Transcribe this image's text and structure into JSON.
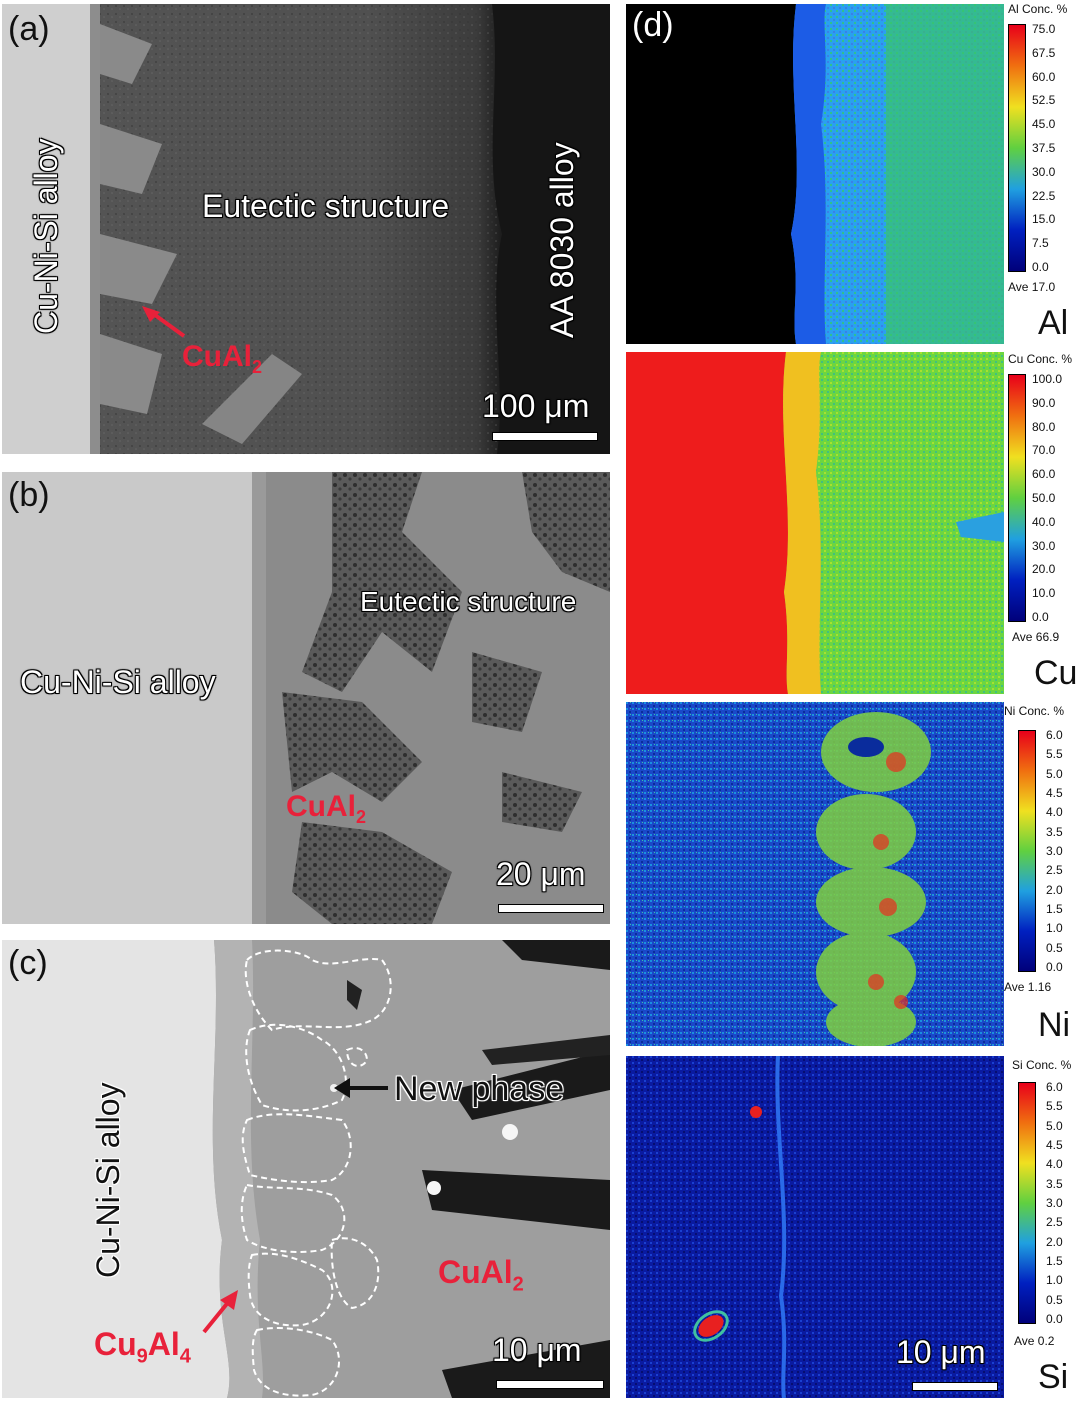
{
  "panels": {
    "a": {
      "label": "(a)",
      "left_text": "Cu-Ni-Si alloy",
      "center_text": "Eutectic structure",
      "right_text": "AA 8030 alloy",
      "phase_text": "CuAl",
      "phase_sub": "2",
      "scale": "100 μm"
    },
    "b": {
      "label": "(b)",
      "left_text": "Cu-Ni-Si alloy",
      "center_text": "Eutectic structure",
      "phase_text": "CuAl",
      "phase_sub": "2",
      "scale": "20 μm"
    },
    "c": {
      "label": "(c)",
      "left_text": "Cu-Ni-Si alloy",
      "new_phase": "New phase",
      "phase_text": "CuAl",
      "phase_sub": "2",
      "phase2_a": "Cu",
      "phase2_sub1": "9",
      "phase2_b": "Al",
      "phase2_sub2": "4",
      "scale": "10 μm"
    },
    "d": {
      "label": "(d)",
      "maps": [
        {
          "element": "Al",
          "title": "Al Conc. %",
          "ticks": [
            "75.0",
            "67.5",
            "60.0",
            "52.5",
            "45.0",
            "37.5",
            "30.0",
            "22.5",
            "15.0",
            "7.5",
            "0.0"
          ],
          "ave": "Ave 17.0"
        },
        {
          "element": "Cu",
          "title": "Cu Conc. %",
          "ticks": [
            "100.0",
            "90.0",
            "80.0",
            "70.0",
            "60.0",
            "50.0",
            "40.0",
            "30.0",
            "20.0",
            "10.0",
            "0.0"
          ],
          "ave": "Ave 66.9"
        },
        {
          "element": "Ni",
          "title": "Ni Conc. %",
          "ticks": [
            "6.0",
            "5.5",
            "5.0",
            "4.5",
            "4.0",
            "3.5",
            "3.0",
            "2.5",
            "2.0",
            "1.5",
            "1.0",
            "0.5",
            "0.0"
          ],
          "ave": "Ave 1.16"
        },
        {
          "element": "Si",
          "title": "Si Conc. %",
          "ticks": [
            "6.0",
            "5.5",
            "5.0",
            "4.5",
            "4.0",
            "3.5",
            "3.0",
            "2.5",
            "2.0",
            "1.5",
            "1.0",
            "0.5",
            "0.0"
          ],
          "ave": "Ave 0.2"
        }
      ],
      "scale": "10 μm"
    }
  },
  "colors": {
    "annotation_red": "#e8213a",
    "jet_top": "#e8001a",
    "jet_bottom": "#00007a"
  }
}
